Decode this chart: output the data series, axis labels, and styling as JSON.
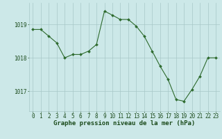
{
  "x": [
    0,
    1,
    2,
    3,
    4,
    5,
    6,
    7,
    8,
    9,
    10,
    11,
    12,
    13,
    14,
    15,
    16,
    17,
    18,
    19,
    20,
    21,
    22,
    23
  ],
  "y": [
    1018.85,
    1018.85,
    1018.65,
    1018.45,
    1018.0,
    1018.1,
    1018.1,
    1018.2,
    1018.4,
    1019.4,
    1019.28,
    1019.15,
    1019.15,
    1018.95,
    1018.65,
    1018.2,
    1017.75,
    1017.35,
    1016.75,
    1016.7,
    1017.05,
    1017.45,
    1018.0,
    1018.0
  ],
  "line_color": "#2d6a2d",
  "marker": "D",
  "marker_size": 2.0,
  "bg_color": "#cce8e8",
  "grid_color": "#a8c8c8",
  "ylabel_ticks": [
    1017,
    1018,
    1019
  ],
  "ylim": [
    1016.4,
    1019.65
  ],
  "xlim": [
    -0.5,
    23.5
  ],
  "xlabel": "Graphe pression niveau de la mer (hPa)",
  "xlabel_fontsize": 6.5,
  "xlabel_color": "#1a4a1a",
  "tick_color": "#1a4a1a",
  "tick_fontsize": 5.5,
  "ytick_fontsize": 5.5
}
